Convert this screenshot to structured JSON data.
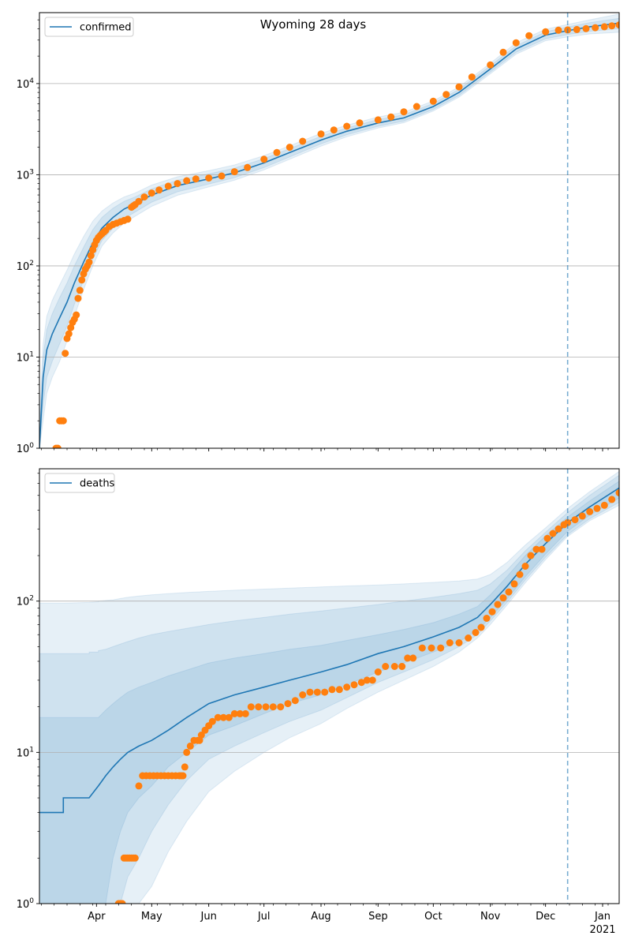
{
  "title": "Wyoming 28 days",
  "colors": {
    "model": "#1f77b4",
    "observed": "#ff7f0e",
    "band": "#1f77b4",
    "grid": "#b0b0b0",
    "forecast_line": "#1f77b4"
  },
  "x_axis": {
    "start": "2020-03-01",
    "end": "2021-01-10",
    "month_ticks": [
      {
        "date": "2020-04-01",
        "label": "Apr"
      },
      {
        "date": "2020-05-01",
        "label": "May"
      },
      {
        "date": "2020-06-01",
        "label": "Jun"
      },
      {
        "date": "2020-07-01",
        "label": "Jul"
      },
      {
        "date": "2020-08-01",
        "label": "Aug"
      },
      {
        "date": "2020-09-01",
        "label": "Sep"
      },
      {
        "date": "2020-10-01",
        "label": "Oct"
      },
      {
        "date": "2020-11-01",
        "label": "Nov"
      },
      {
        "date": "2020-12-01",
        "label": "Dec"
      },
      {
        "date": "2021-01-01",
        "label": "Jan"
      }
    ],
    "year_label": "2021",
    "forecast_start": "2020-12-13"
  },
  "chart_data": [
    {
      "type": "line",
      "y_scale": "log",
      "ylim": [
        1,
        60000
      ],
      "grid": "y",
      "legend": {
        "position": "top-left",
        "label": "confirmed"
      },
      "y_ticks": [
        {
          "value": 1,
          "base": "10",
          "exp": "0"
        },
        {
          "value": 10,
          "base": "10",
          "exp": "1"
        },
        {
          "value": 100,
          "base": "10",
          "exp": "2"
        },
        {
          "value": 1000,
          "base": "10",
          "exp": "3"
        },
        {
          "value": 10000,
          "base": "10",
          "exp": "4"
        }
      ],
      "model": {
        "name": "confirmed",
        "dates": [
          "2020-03-01",
          "2020-03-03",
          "2020-03-05",
          "2020-03-08",
          "2020-03-12",
          "2020-03-16",
          "2020-03-20",
          "2020-03-25",
          "2020-03-30",
          "2020-04-04",
          "2020-04-10",
          "2020-04-16",
          "2020-04-22",
          "2020-05-01",
          "2020-05-15",
          "2020-06-01",
          "2020-06-15",
          "2020-07-01",
          "2020-07-15",
          "2020-08-01",
          "2020-08-15",
          "2020-09-01",
          "2020-09-15",
          "2020-10-01",
          "2020-10-15",
          "2020-11-01",
          "2020-11-15",
          "2020-12-01",
          "2020-12-13",
          "2020-12-25",
          "2021-01-10"
        ],
        "values": [
          1,
          6,
          12,
          18,
          27,
          40,
          65,
          110,
          180,
          260,
          340,
          420,
          480,
          600,
          760,
          900,
          1050,
          1350,
          1750,
          2400,
          3000,
          3700,
          4200,
          5600,
          8000,
          14500,
          24000,
          34000,
          38000,
          42000,
          46000
        ],
        "bands": [
          {
            "lower": [
              1,
              3,
              6,
              9,
              14,
              22,
              38,
              70,
              120,
              190,
              260,
              330,
              390,
              500,
              650,
              790,
              930,
              1200,
              1570,
              2180,
              2750,
              3400,
              3880,
              5200,
              7400,
              13400,
              22000,
              31000,
              34500,
              37500,
              40000
            ],
            "upper": [
              1.5,
              10,
              20,
              30,
              45,
              65,
              100,
              160,
              250,
              340,
              430,
              510,
              570,
              700,
              870,
              1020,
              1180,
              1500,
              1930,
              2640,
              3260,
              4020,
              4550,
              6050,
              8650,
              15700,
              26000,
              37000,
              41800,
              46500,
              52000
            ]
          },
          {
            "lower": [
              1,
              2,
              4,
              6,
              9,
              15,
              28,
              55,
              100,
              165,
              230,
              295,
              350,
              450,
              595,
              735,
              870,
              1130,
              1480,
              2060,
              2610,
              3250,
              3720,
              5000,
              7100,
              12800,
              21000,
              29500,
              32500,
              35000,
              36500
            ],
            "upper": [
              2,
              14,
              28,
              42,
              62,
              90,
              135,
              210,
              310,
              400,
              490,
              570,
              630,
              770,
              950,
              1110,
              1280,
              1620,
              2080,
              2850,
              3500,
              4300,
              4850,
              6450,
              9200,
              16700,
              28000,
              39500,
              44500,
              50000,
              58000
            ]
          }
        ]
      },
      "observed": {
        "name": "confirmed observed",
        "dates": [
          "2020-03-10",
          "2020-03-11",
          "2020-03-12",
          "2020-03-13",
          "2020-03-14",
          "2020-03-15",
          "2020-03-16",
          "2020-03-17",
          "2020-03-18",
          "2020-03-19",
          "2020-03-20",
          "2020-03-21",
          "2020-03-22",
          "2020-03-23",
          "2020-03-24",
          "2020-03-25",
          "2020-03-26",
          "2020-03-27",
          "2020-03-28",
          "2020-03-29",
          "2020-03-30",
          "2020-03-31",
          "2020-04-01",
          "2020-04-02",
          "2020-04-03",
          "2020-04-04",
          "2020-04-05",
          "2020-04-06",
          "2020-04-08",
          "2020-04-10",
          "2020-04-12",
          "2020-04-14",
          "2020-04-16",
          "2020-04-18",
          "2020-04-20",
          "2020-04-21",
          "2020-04-22",
          "2020-04-24",
          "2020-04-27",
          "2020-05-01",
          "2020-05-05",
          "2020-05-10",
          "2020-05-15",
          "2020-05-20",
          "2020-05-25",
          "2020-06-01",
          "2020-06-08",
          "2020-06-15",
          "2020-06-22",
          "2020-07-01",
          "2020-07-08",
          "2020-07-15",
          "2020-07-22",
          "2020-08-01",
          "2020-08-08",
          "2020-08-15",
          "2020-08-22",
          "2020-09-01",
          "2020-09-08",
          "2020-09-15",
          "2020-09-22",
          "2020-10-01",
          "2020-10-08",
          "2020-10-15",
          "2020-10-22",
          "2020-11-01",
          "2020-11-08",
          "2020-11-15",
          "2020-11-22",
          "2020-12-01",
          "2020-12-08",
          "2020-12-13",
          "2020-12-18",
          "2020-12-23",
          "2020-12-28",
          "2021-01-02",
          "2021-01-06",
          "2021-01-10"
        ],
        "values": [
          1,
          1,
          2,
          2,
          2,
          11,
          16,
          18,
          21,
          24,
          26,
          29,
          44,
          54,
          70,
          82,
          92,
          100,
          110,
          130,
          150,
          170,
          190,
          205,
          215,
          225,
          235,
          245,
          270,
          285,
          295,
          305,
          315,
          325,
          440,
          455,
          470,
          510,
          570,
          630,
          680,
          750,
          800,
          860,
          900,
          920,
          970,
          1080,
          1200,
          1480,
          1750,
          2000,
          2330,
          2800,
          3100,
          3400,
          3700,
          4000,
          4300,
          4900,
          5600,
          6400,
          7600,
          9200,
          11800,
          16000,
          22000,
          28000,
          33500,
          37000,
          38500,
          38800,
          39200,
          40000,
          41000,
          42000,
          43000,
          44000
        ]
      }
    },
    {
      "type": "line",
      "y_scale": "log",
      "ylim": [
        1,
        750
      ],
      "grid": "y",
      "legend": {
        "position": "top-left",
        "label": "deaths"
      },
      "y_ticks": [
        {
          "value": 10,
          "base": "10",
          "exp": "1"
        },
        {
          "value": 100,
          "base": "10",
          "exp": "2"
        }
      ],
      "y_bottom_label": {
        "base": "10",
        "exp": "0"
      },
      "model": {
        "name": "deaths",
        "dates": [
          "2020-03-01",
          "2020-03-14",
          "2020-03-14",
          "2020-03-28",
          "2020-03-28",
          "2020-04-02",
          "2020-04-02",
          "2020-04-06",
          "2020-04-10",
          "2020-04-14",
          "2020-04-18",
          "2020-04-24",
          "2020-05-01",
          "2020-05-10",
          "2020-05-20",
          "2020-06-01",
          "2020-06-15",
          "2020-07-01",
          "2020-07-15",
          "2020-08-01",
          "2020-08-15",
          "2020-09-01",
          "2020-09-15",
          "2020-10-01",
          "2020-10-15",
          "2020-10-25",
          "2020-11-01",
          "2020-11-10",
          "2020-11-20",
          "2020-12-01",
          "2020-12-13",
          "2020-12-25",
          "2021-01-10"
        ],
        "values": [
          4,
          4,
          5,
          5,
          5,
          6,
          6,
          7,
          8,
          9,
          10,
          11,
          12,
          14,
          17,
          21,
          24,
          27,
          30,
          34,
          38,
          45,
          50,
          58,
          67,
          78,
          95,
          125,
          175,
          240,
          330,
          420,
          560
        ],
        "bands": [
          {
            "lower": [
              0.5,
              0.5,
              0.5,
              0.5,
              0.5,
              0.5,
              0.5,
              1,
              2,
              3,
              4,
              5,
              6,
              8,
              10,
              13,
              15,
              18,
              21,
              24,
              28,
              34,
              39,
              46,
              54,
              64,
              78,
              103,
              145,
              205,
              290,
              370,
              480
            ],
            "upper": [
              17,
              17,
              17,
              17,
              17,
              17,
              17,
              19,
              21,
              23,
              25,
              27,
              29,
              32,
              35,
              39,
              42,
              45,
              48,
              51,
              55,
              60,
              65,
              72,
              82,
              92,
              110,
              145,
              200,
              270,
              360,
              460,
              620
            ]
          },
          {
            "lower": [
              0.3,
              0.3,
              0.3,
              0.3,
              0.3,
              0.3,
              0.3,
              0.3,
              0.5,
              1,
              1.5,
              2,
              3,
              4.5,
              6.5,
              9,
              11,
              13.5,
              16,
              19,
              23,
              29,
              34,
              41,
              50,
              60,
              74,
              98,
              138,
              195,
              275,
              350,
              450
            ],
            "upper": [
              45,
              45,
              45,
              45,
              46,
              46,
              47,
              48,
              50,
              52,
              54,
              57,
              60,
              63,
              66,
              70,
              74,
              78,
              82,
              86,
              90,
              95,
              100,
              106,
              112,
              118,
              130,
              160,
              215,
              285,
              385,
              500,
              680
            ]
          },
          {
            "lower": [
              0.2,
              0.2,
              0.2,
              0.2,
              0.2,
              0.2,
              0.2,
              0.2,
              0.2,
              0.3,
              0.5,
              0.8,
              1.3,
              2.2,
              3.5,
              5.5,
              7.5,
              10,
              12.5,
              15.5,
              19.5,
              25,
              30,
              37,
              46,
              57,
              70,
              94,
              132,
              188,
              268,
              340,
              430
            ],
            "upper": [
              97,
              97,
              97,
              98,
              98,
              99,
              100,
              101,
              102,
              104,
              106,
              108,
              110,
              112,
              114,
              116,
              118,
              120,
              122,
              124,
              126,
              128,
              130,
              133,
              136,
              140,
              150,
              180,
              235,
              305,
              410,
              530,
              720
            ]
          }
        ]
      },
      "observed": {
        "name": "deaths observed",
        "dates": [
          "2020-04-13",
          "2020-04-14",
          "2020-04-15",
          "2020-04-16",
          "2020-04-17",
          "2020-04-18",
          "2020-04-19",
          "2020-04-20",
          "2020-04-21",
          "2020-04-22",
          "2020-04-24",
          "2020-04-26",
          "2020-04-28",
          "2020-04-30",
          "2020-05-02",
          "2020-05-04",
          "2020-05-06",
          "2020-05-08",
          "2020-05-10",
          "2020-05-12",
          "2020-05-14",
          "2020-05-16",
          "2020-05-17",
          "2020-05-18",
          "2020-05-19",
          "2020-05-20",
          "2020-05-22",
          "2020-05-24",
          "2020-05-26",
          "2020-05-27",
          "2020-05-28",
          "2020-05-30",
          "2020-06-01",
          "2020-06-03",
          "2020-06-06",
          "2020-06-09",
          "2020-06-12",
          "2020-06-15",
          "2020-06-18",
          "2020-06-21",
          "2020-06-24",
          "2020-06-28",
          "2020-07-02",
          "2020-07-06",
          "2020-07-10",
          "2020-07-14",
          "2020-07-18",
          "2020-07-22",
          "2020-07-26",
          "2020-07-30",
          "2020-08-03",
          "2020-08-07",
          "2020-08-11",
          "2020-08-15",
          "2020-08-19",
          "2020-08-23",
          "2020-08-26",
          "2020-08-29",
          "2020-09-01",
          "2020-09-05",
          "2020-09-10",
          "2020-09-14",
          "2020-09-17",
          "2020-09-20",
          "2020-09-25",
          "2020-09-30",
          "2020-10-05",
          "2020-10-10",
          "2020-10-15",
          "2020-10-20",
          "2020-10-24",
          "2020-10-27",
          "2020-10-30",
          "2020-11-02",
          "2020-11-05",
          "2020-11-08",
          "2020-11-11",
          "2020-11-14",
          "2020-11-17",
          "2020-11-20",
          "2020-11-23",
          "2020-11-26",
          "2020-11-29",
          "2020-12-02",
          "2020-12-05",
          "2020-12-08",
          "2020-12-11",
          "2020-12-13",
          "2020-12-17",
          "2020-12-21",
          "2020-12-25",
          "2020-12-29",
          "2021-01-02",
          "2021-01-06",
          "2021-01-10"
        ],
        "values": [
          1,
          1,
          1,
          2,
          2,
          2,
          2,
          2,
          2,
          2,
          6,
          7,
          7,
          7,
          7,
          7,
          7,
          7,
          7,
          7,
          7,
          7,
          7,
          7,
          8,
          10,
          11,
          12,
          12,
          12,
          13,
          14,
          15,
          16,
          17,
          17,
          17,
          18,
          18,
          18,
          20,
          20,
          20,
          20,
          20,
          21,
          22,
          24,
          25,
          25,
          25,
          26,
          26,
          27,
          28,
          29,
          30,
          30,
          34,
          37,
          37,
          37,
          42,
          42,
          49,
          49,
          49,
          53,
          53,
          57,
          62,
          67,
          77,
          85,
          95,
          105,
          115,
          130,
          150,
          170,
          200,
          220,
          220,
          260,
          280,
          300,
          320,
          330,
          345,
          365,
          390,
          410,
          430,
          470,
          520
        ]
      }
    }
  ]
}
